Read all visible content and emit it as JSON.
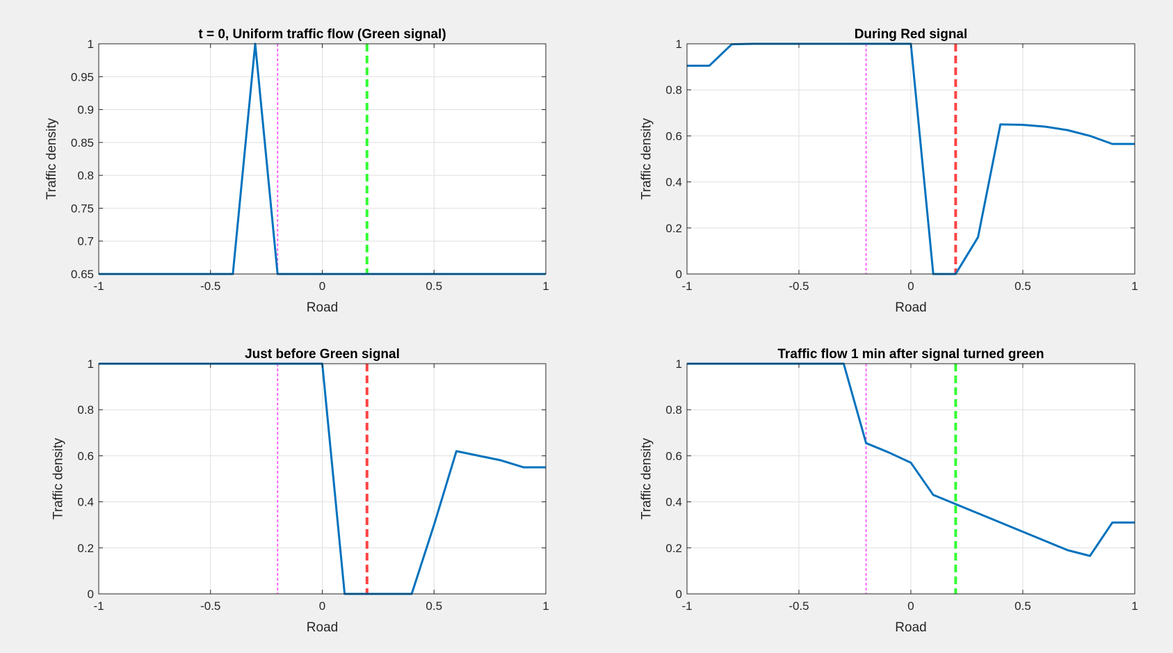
{
  "chart_data": [
    {
      "type": "line",
      "title": "t = 0, Uniform traffic flow (Green signal)",
      "xlabel": "Road",
      "ylabel": "Traffic density",
      "xlim": [
        -1,
        1
      ],
      "ylim": [
        0.65,
        1
      ],
      "xticks": [
        -1,
        -0.5,
        0,
        0.5,
        1
      ],
      "xtick_labels": [
        "-1",
        "-0.5",
        "0",
        "0.5",
        "1"
      ],
      "yticks": [
        0.65,
        0.7,
        0.75,
        0.8,
        0.85,
        0.9,
        0.95,
        1
      ],
      "ytick_labels": [
        "0.65",
        "0.7",
        "0.75",
        "0.8",
        "0.85",
        "0.9",
        "0.95",
        "1"
      ],
      "grid": true,
      "series": [
        {
          "color": "#0072bd",
          "x": [
            -1,
            -0.9,
            -0.8,
            -0.7,
            -0.6,
            -0.5,
            -0.4,
            -0.3,
            -0.2,
            -0.1,
            0,
            0.1,
            0.2,
            0.3,
            0.4,
            0.5,
            0.6,
            0.7,
            0.8,
            0.9,
            1
          ],
          "y": [
            0.65,
            0.65,
            0.65,
            0.65,
            0.65,
            0.65,
            0.65,
            1,
            0.65,
            0.65,
            0.65,
            0.65,
            0.65,
            0.65,
            0.65,
            0.65,
            0.65,
            0.65,
            0.65,
            0.65,
            0.65
          ]
        }
      ],
      "vlines": [
        {
          "x": -0.2,
          "color": "#ff66ff",
          "style": "dotted"
        },
        {
          "x": 0.2,
          "color": "#33ff33",
          "style": "dashed"
        }
      ]
    },
    {
      "type": "line",
      "title": "During Red signal",
      "xlabel": "Road",
      "ylabel": "Traffic density",
      "xlim": [
        -1,
        1
      ],
      "ylim": [
        0,
        1
      ],
      "xticks": [
        -1,
        -0.5,
        0,
        0.5,
        1
      ],
      "xtick_labels": [
        "-1",
        "-0.5",
        "0",
        "0.5",
        "1"
      ],
      "yticks": [
        0,
        0.2,
        0.4,
        0.6,
        0.8,
        1
      ],
      "ytick_labels": [
        "0",
        "0.2",
        "0.4",
        "0.6",
        "0.8",
        "1"
      ],
      "grid": true,
      "series": [
        {
          "color": "#0072bd",
          "x": [
            -1,
            -0.9,
            -0.8,
            -0.7,
            -0.6,
            -0.5,
            -0.4,
            -0.3,
            -0.2,
            -0.1,
            0,
            0.1,
            0.2,
            0.3,
            0.4,
            0.5,
            0.6,
            0.7,
            0.8,
            0.9,
            1
          ],
          "y": [
            0.905,
            0.905,
            0.998,
            1,
            1,
            1,
            1,
            1,
            1,
            1,
            1,
            0,
            0,
            0.16,
            0.65,
            0.648,
            0.64,
            0.625,
            0.6,
            0.565,
            0.565
          ]
        }
      ],
      "vlines": [
        {
          "x": -0.2,
          "color": "#ff66ff",
          "style": "dotted"
        },
        {
          "x": 0.2,
          "color": "#ff4444",
          "style": "dashed"
        }
      ]
    },
    {
      "type": "line",
      "title": "Just before Green signal",
      "xlabel": "Road",
      "ylabel": "Traffic density",
      "xlim": [
        -1,
        1
      ],
      "ylim": [
        0,
        1
      ],
      "xticks": [
        -1,
        -0.5,
        0,
        0.5,
        1
      ],
      "xtick_labels": [
        "-1",
        "-0.5",
        "0",
        "0.5",
        "1"
      ],
      "yticks": [
        0,
        0.2,
        0.4,
        0.6,
        0.8,
        1
      ],
      "ytick_labels": [
        "0",
        "0.2",
        "0.4",
        "0.6",
        "0.8",
        "1"
      ],
      "grid": true,
      "series": [
        {
          "color": "#0072bd",
          "x": [
            -1,
            -0.9,
            -0.8,
            -0.7,
            -0.6,
            -0.5,
            -0.4,
            -0.3,
            -0.2,
            -0.1,
            0,
            0.1,
            0.2,
            0.3,
            0.4,
            0.5,
            0.6,
            0.7,
            0.8,
            0.9,
            1
          ],
          "y": [
            1,
            1,
            1,
            1,
            1,
            1,
            1,
            1,
            1,
            1,
            1,
            0,
            0,
            0,
            0,
            0.3,
            0.62,
            0.6,
            0.58,
            0.55,
            0.55
          ]
        }
      ],
      "vlines": [
        {
          "x": -0.2,
          "color": "#ff66ff",
          "style": "dotted"
        },
        {
          "x": 0.2,
          "color": "#ff4444",
          "style": "dashed"
        }
      ]
    },
    {
      "type": "line",
      "title": "Traffic flow 1 min after signal turned green",
      "xlabel": "Road",
      "ylabel": "Traffic density",
      "xlim": [
        -1,
        1
      ],
      "ylim": [
        0,
        1
      ],
      "xticks": [
        -1,
        -0.5,
        0,
        0.5,
        1
      ],
      "xtick_labels": [
        "-1",
        "-0.5",
        "0",
        "0.5",
        "1"
      ],
      "yticks": [
        0,
        0.2,
        0.4,
        0.6,
        0.8,
        1
      ],
      "ytick_labels": [
        "0",
        "0.2",
        "0.4",
        "0.6",
        "0.8",
        "1"
      ],
      "grid": true,
      "series": [
        {
          "color": "#0072bd",
          "x": [
            -1,
            -0.9,
            -0.8,
            -0.7,
            -0.6,
            -0.5,
            -0.4,
            -0.3,
            -0.2,
            -0.1,
            0,
            0.1,
            0.2,
            0.3,
            0.4,
            0.5,
            0.6,
            0.7,
            0.8,
            0.9,
            1
          ],
          "y": [
            1,
            1,
            1,
            1,
            1,
            1,
            1,
            1,
            0.655,
            0.615,
            0.57,
            0.43,
            0.39,
            0.35,
            0.31,
            0.27,
            0.23,
            0.19,
            0.165,
            0.31,
            0.31
          ]
        }
      ],
      "vlines": [
        {
          "x": -0.2,
          "color": "#ff66ff",
          "style": "dotted"
        },
        {
          "x": 0.2,
          "color": "#33ff33",
          "style": "dashed"
        }
      ]
    }
  ]
}
